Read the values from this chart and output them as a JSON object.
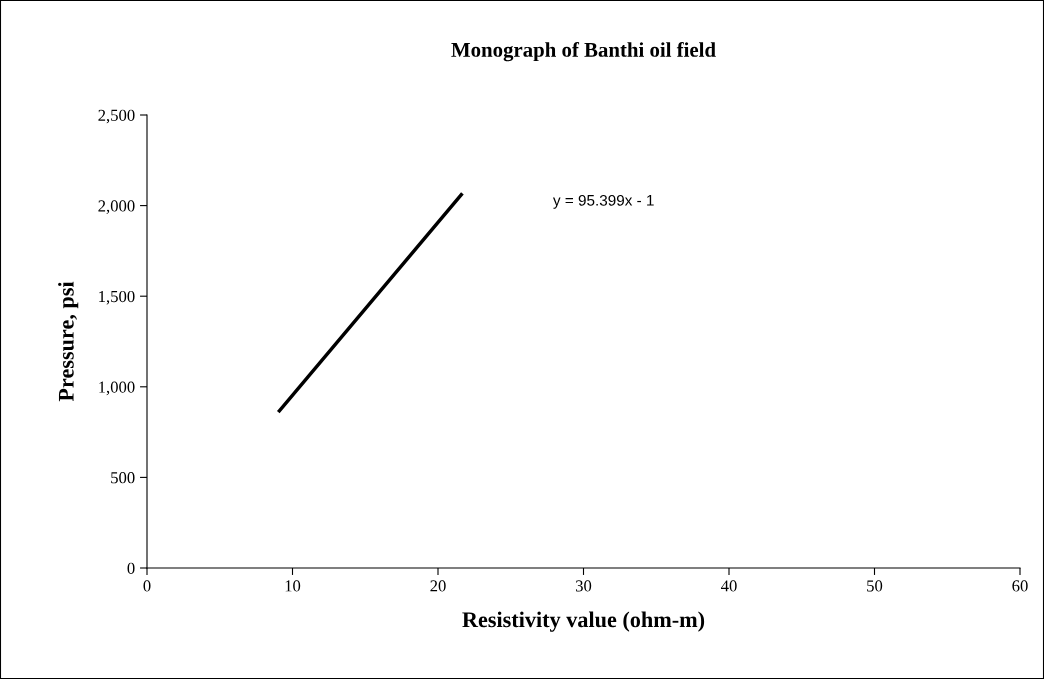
{
  "chart_data": {
    "type": "line",
    "title": "Monograph of Banthi oil field",
    "xlabel": "Resistivity value (ohm-m)",
    "ylabel": "Pressure, psi",
    "x": [
      9.1,
      21.6
    ],
    "series": [
      {
        "color": "#000000",
        "values": [
          867,
          2060
        ]
      }
    ],
    "xlim": [
      0,
      60
    ],
    "xticks": [
      0,
      10,
      20,
      30,
      40,
      50,
      60
    ],
    "ylim": [
      0,
      2500
    ],
    "yticks": [
      {
        "value": 0,
        "label": "0"
      },
      {
        "value": 500,
        "label": "500"
      },
      {
        "value": 1000,
        "label": "1,000"
      },
      {
        "value": 1500,
        "label": "1,500"
      },
      {
        "value": 2000,
        "label": "2,000"
      },
      {
        "value": 2500,
        "label": "2,500"
      }
    ],
    "annotations": [
      "y = 95.399x - 1"
    ],
    "grid": false,
    "legend": false,
    "marker": "none",
    "line_style": "solid"
  }
}
